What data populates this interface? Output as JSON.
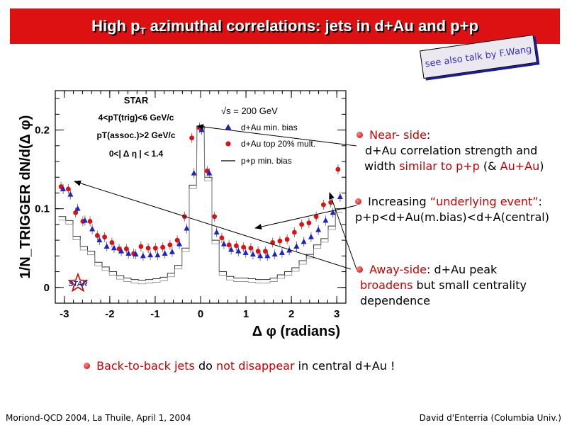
{
  "header": {
    "title_pre": "High p",
    "title_sub": "T",
    "title_post": " azimuthal correlations: jets in d+Au and p+p"
  },
  "reference": "see also talk by F.Wang",
  "chart_data": {
    "type": "scatter",
    "xlabel": "Δ φ (radians)",
    "ylabel": "1/N_TRIGGER dN/d(Δ φ)",
    "xlim": [
      -3.2,
      3.2
    ],
    "ylim": [
      -0.02,
      0.25
    ],
    "xticks": [
      "-3",
      "-2",
      "-1",
      "0",
      "1",
      "2",
      "3"
    ],
    "yticks": [
      "0",
      "0.1",
      "0.2"
    ],
    "cut_labels": [
      "STAR",
      "4<pT(trig)<6 GeV/c",
      "pT(assoc.)>2 GeV/c",
      "0<| Δ η | < 1.4"
    ],
    "energy_label": "√s = 200 GeV",
    "legend_position": "top-right",
    "x": [
      -3.05,
      -2.89,
      -2.73,
      -2.57,
      -2.41,
      -2.25,
      -2.09,
      -1.93,
      -1.77,
      -1.61,
      -1.45,
      -1.29,
      -1.13,
      -0.97,
      -0.81,
      -0.65,
      -0.49,
      -0.33,
      -0.17,
      0.0,
      0.17,
      0.33,
      0.49,
      0.65,
      0.81,
      0.97,
      1.13,
      1.29,
      1.45,
      1.61,
      1.77,
      1.93,
      2.09,
      2.25,
      2.41,
      2.57,
      2.73,
      2.89,
      3.05
    ],
    "series": [
      {
        "name": "d+Au min. bias",
        "marker": "triangle",
        "color": "#1a22cc",
        "values": [
          0.125,
          0.118,
          0.1,
          0.085,
          0.074,
          0.06,
          0.052,
          0.05,
          0.046,
          0.043,
          0.042,
          0.04,
          0.041,
          0.041,
          0.043,
          0.045,
          0.055,
          0.075,
          0.145,
          0.2,
          0.145,
          0.07,
          0.055,
          0.048,
          0.046,
          0.044,
          0.042,
          0.04,
          0.04,
          0.042,
          0.044,
          0.047,
          0.052,
          0.058,
          0.064,
          0.073,
          0.085,
          0.095,
          0.115
        ]
      },
      {
        "name": "d+Au top 20% mult.",
        "marker": "circle",
        "color": "#dd1111",
        "values": [
          0.128,
          0.125,
          0.095,
          0.084,
          0.084,
          0.066,
          0.064,
          0.057,
          0.049,
          0.049,
          0.043,
          0.052,
          0.05,
          0.05,
          0.051,
          0.054,
          0.06,
          0.09,
          0.19,
          0.203,
          0.148,
          0.09,
          0.063,
          0.054,
          0.053,
          0.051,
          0.05,
          0.046,
          0.046,
          0.057,
          0.059,
          0.061,
          0.07,
          0.08,
          0.082,
          0.09,
          0.105,
          0.108,
          0.15
        ]
      },
      {
        "name": "p+p min. bias",
        "marker": "line",
        "color": "#000000",
        "values": [
          0.09,
          0.085,
          0.065,
          0.052,
          0.046,
          0.032,
          0.026,
          0.02,
          0.015,
          0.012,
          0.01,
          0.009,
          0.01,
          0.011,
          0.013,
          0.018,
          0.028,
          0.05,
          0.13,
          0.205,
          0.14,
          0.06,
          0.02,
          0.014,
          0.012,
          0.012,
          0.011,
          0.01,
          0.01,
          0.012,
          0.016,
          0.02,
          0.025,
          0.034,
          0.042,
          0.054,
          0.062,
          0.078,
          0.1
        ]
      }
    ]
  },
  "notes": {
    "near": {
      "l1": "Near- side",
      "l1b": ":",
      "l2": "d+Au correlation strength and",
      "l3a": "width ",
      "l3b": "similar to p+p",
      "l3c": " (& ",
      "l3d": "Au+Au",
      "l3e": ")"
    },
    "under": {
      "l1a": "Increasing ",
      "l1b": "“underlying event”",
      "l1c": ":",
      "l2": "p+p<d+Au(m.bias)<d+A(central)"
    },
    "away": {
      "l1a": "Away-side",
      "l1b": ": d+Au peak",
      "l2a": "broadens",
      "l2b": " but small centrality",
      "l3": "dependence"
    },
    "back": {
      "a": "Back-to-back jets",
      "b": " do ",
      "c": "not disappear",
      "d": " in central d+Au !"
    }
  },
  "footer": {
    "left": "Moriond-QCD 2004, La Thuile, April 1, 2004",
    "right": "David d'Enterria (Columbia Univ.)"
  },
  "star_logo": "STAR"
}
